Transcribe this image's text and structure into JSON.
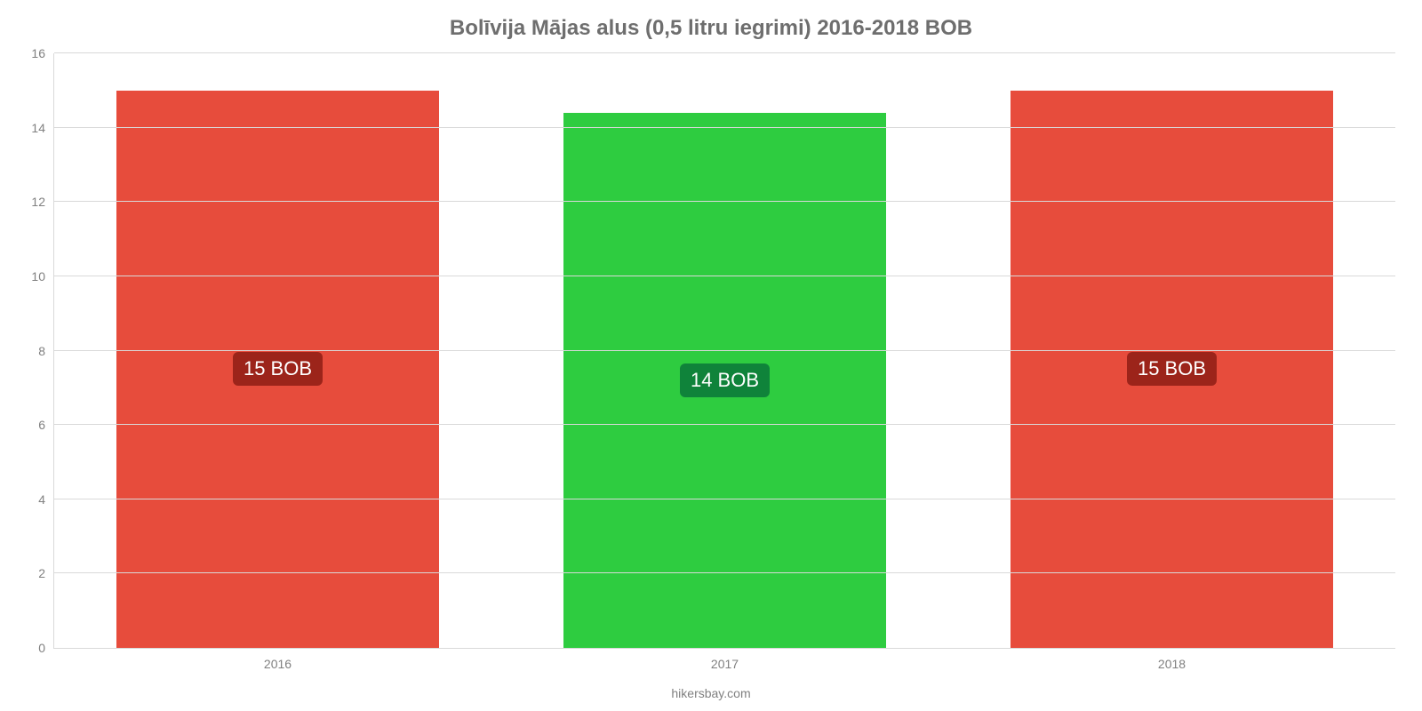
{
  "chart": {
    "type": "bar",
    "title": "Bolīvija Mājas alus (0,5 litru iegrimi) 2016-2018 BOB",
    "title_color": "#6e6e6e",
    "title_fontsize": 24,
    "categories": [
      "2016",
      "2017",
      "2018"
    ],
    "values": [
      15.0,
      14.4,
      15.0
    ],
    "value_labels": [
      "15 BOB",
      "14 BOB",
      "15 BOB"
    ],
    "bar_colors": [
      "#e74c3c",
      "#2ecc40",
      "#e74c3c"
    ],
    "label_bg_colors": [
      "#9c241a",
      "#0f833a",
      "#9c241a"
    ],
    "bar_width_pct": 72,
    "ylim": [
      0,
      16
    ],
    "ytick_step": 2,
    "yticks": [
      0,
      2,
      4,
      6,
      8,
      10,
      12,
      14,
      16
    ],
    "axis_tick_color": "#808080",
    "axis_tick_fontsize": 14,
    "grid_color": "#d9d9d9",
    "background_color": "#ffffff",
    "footer_text": "hikersbay.com",
    "footer_color": "#808080",
    "label_text_color": "#ffffff",
    "label_fontsize": 22
  }
}
